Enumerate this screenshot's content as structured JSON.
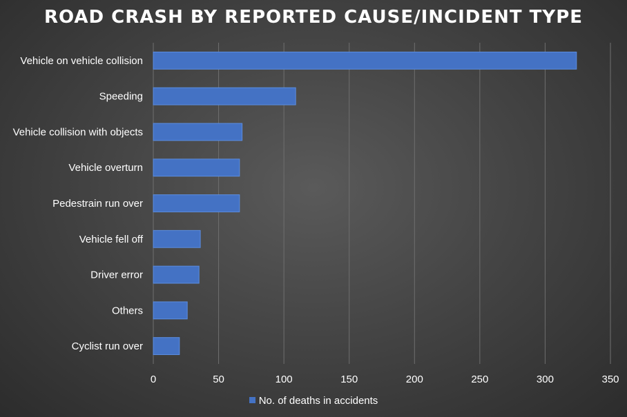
{
  "chart_data": {
    "type": "bar",
    "orientation": "horizontal",
    "title": "ROAD CRASH BY REPORTED CAUSE/INCIDENT TYPE",
    "categories": [
      "Vehicle on vehicle collision",
      "Speeding",
      "Vehicle collision with objects",
      "Vehicle overturn",
      "Pedestrain run over",
      "Vehicle fell off",
      "Driver error",
      "Others",
      "Cyclist run over"
    ],
    "series": [
      {
        "name": "No. of deaths in accidents",
        "values": [
          324,
          109,
          68,
          66,
          66,
          36,
          35,
          26,
          20
        ],
        "color": "#4472c4"
      }
    ],
    "xlim": [
      0,
      350
    ],
    "xticks": [
      0,
      50,
      100,
      150,
      200,
      250,
      300,
      350
    ],
    "grid": true,
    "legend_position": "bottom"
  }
}
